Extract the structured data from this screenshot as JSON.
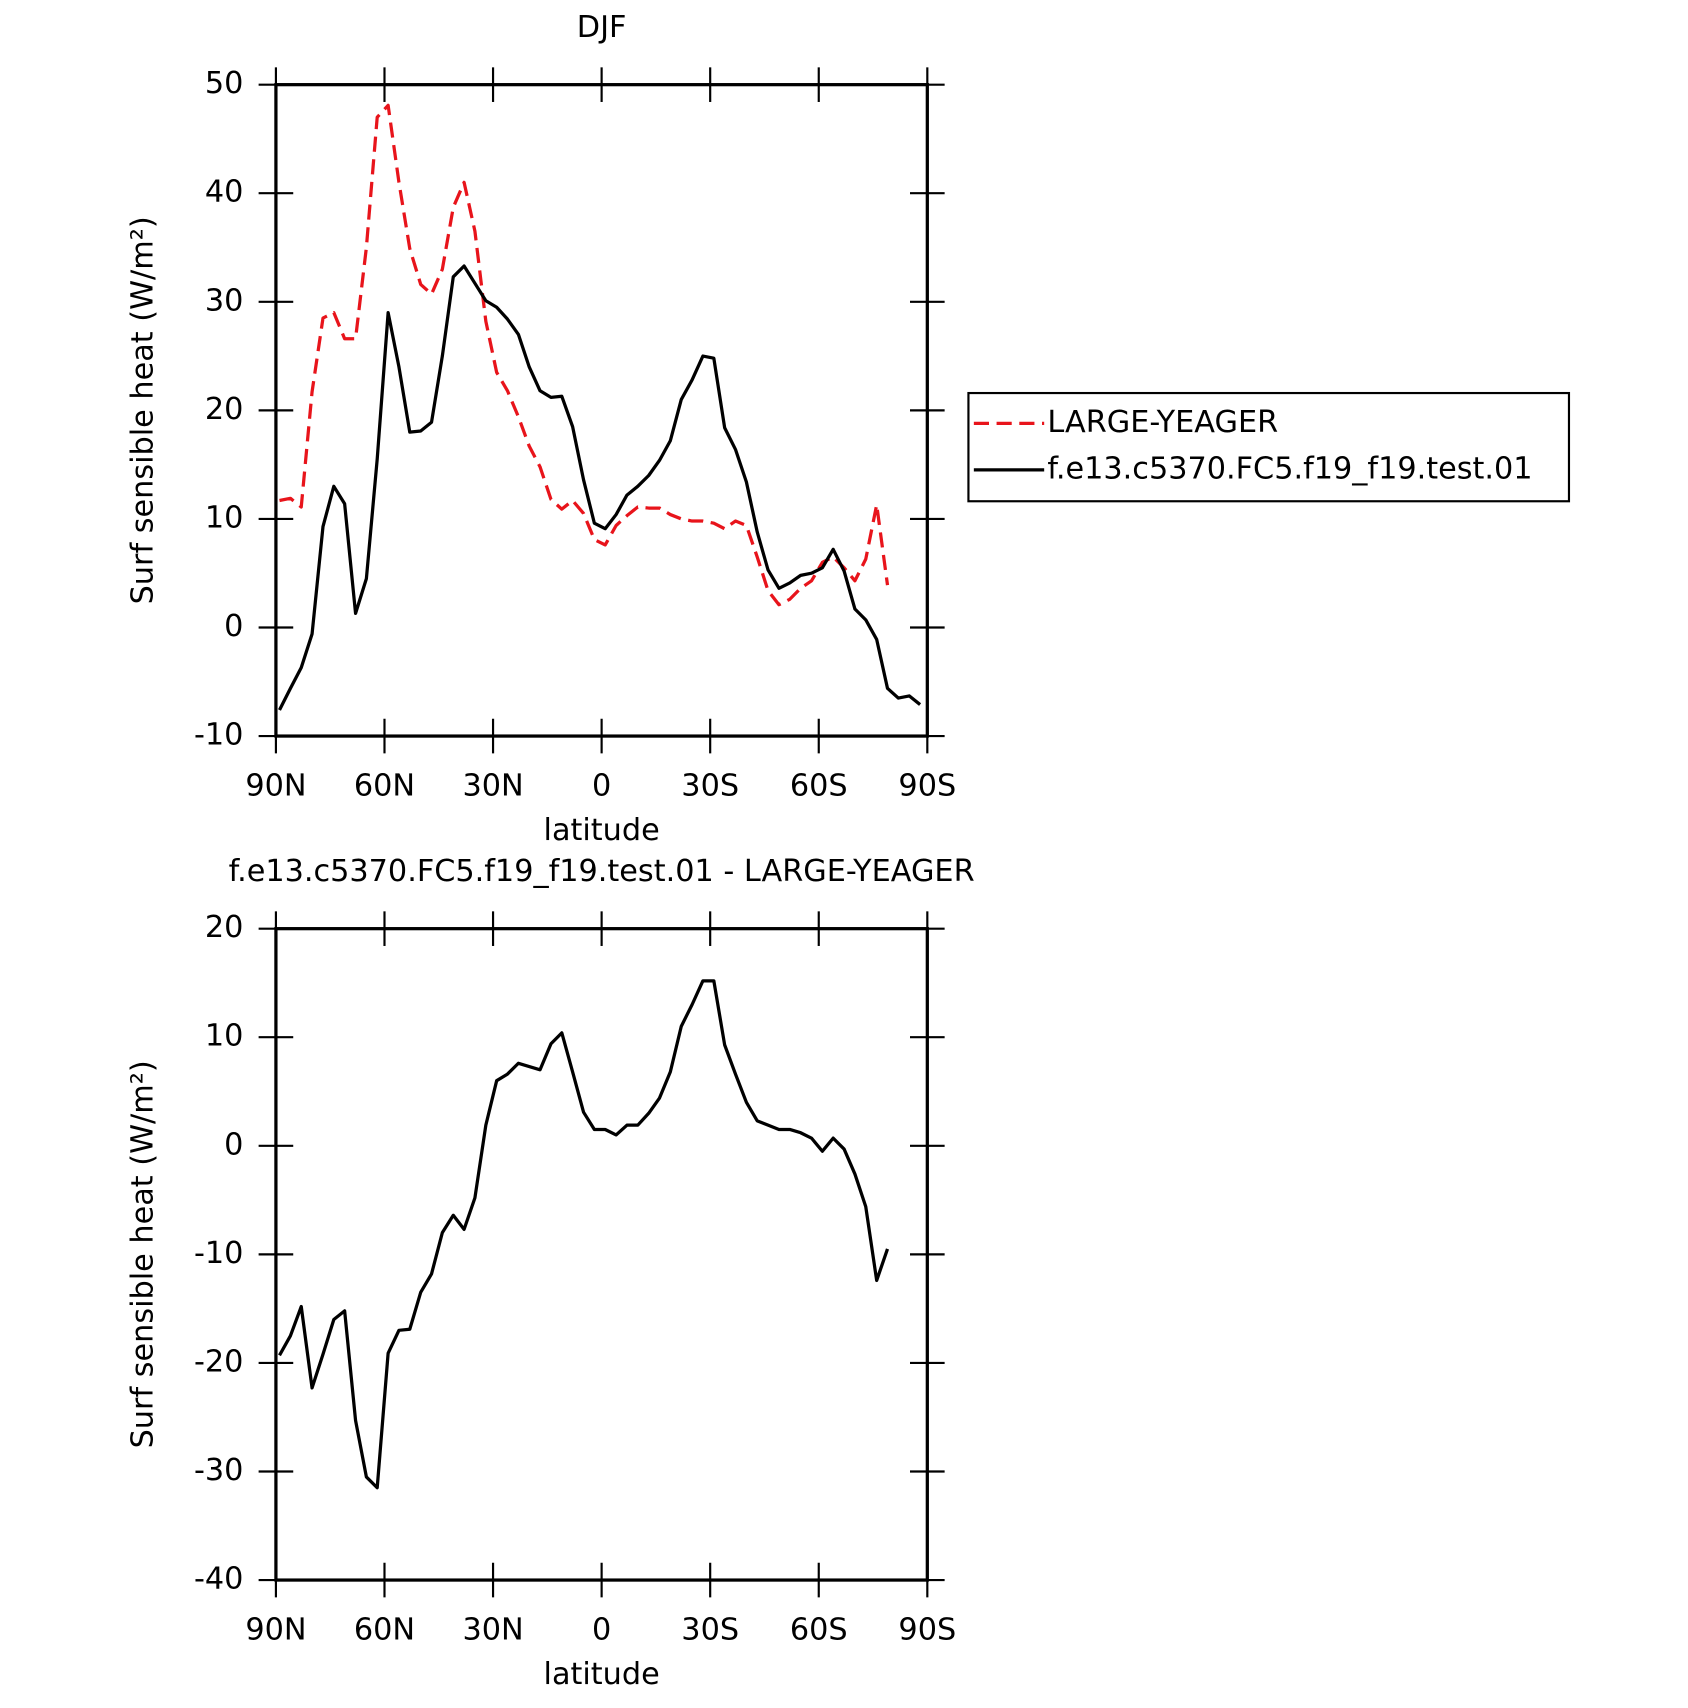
{
  "chart_data": [
    {
      "type": "line",
      "title": "DJF",
      "xlabel": "latitude",
      "ylabel": "Surf sensible heat (W/m²)",
      "x": [
        89,
        86,
        83,
        80,
        77,
        74,
        71,
        68,
        65,
        62,
        59,
        56,
        53,
        50,
        47,
        44,
        41,
        38,
        35,
        32,
        29,
        26,
        23,
        20,
        17,
        14,
        11,
        8,
        5,
        2,
        -1,
        -4,
        -7,
        -10,
        -13,
        -16,
        -19,
        -22,
        -25,
        -28,
        -31,
        -34,
        -37,
        -40,
        -43,
        -46,
        -49,
        -52,
        -55,
        -58,
        -61,
        -64,
        -67,
        -70,
        -73,
        -76,
        -79,
        -82,
        -85,
        -88
      ],
      "series": [
        {
          "name": "LARGE-YEAGER",
          "color": "#e8141b",
          "dash": true,
          "values": [
            11.7,
            11.9,
            11.1,
            21.7,
            28.5,
            29,
            26.6,
            26.6,
            35,
            47,
            48.1,
            41,
            34.9,
            31.6,
            30.7,
            33,
            38.7,
            41,
            36.5,
            28.2,
            23.5,
            21.8,
            19.4,
            16.7,
            14.8,
            11.8,
            10.9,
            11.7,
            10.5,
            8.1,
            7.6,
            9.4,
            10.3,
            11.1,
            11,
            11,
            10.4,
            10,
            9.8,
            9.8,
            9.6,
            9.1,
            9.8,
            9.4,
            6.5,
            3.4,
            2.1,
            2.6,
            3.6,
            4.3,
            6,
            6.5,
            5.5,
            4.3,
            6.3,
            11.3,
            3.9,
            null,
            null,
            null
          ]
        },
        {
          "name": "f.e13.c5370.FC5.f19_f19.test.01",
          "color": "#000000",
          "dash": false,
          "values": [
            -7.6,
            -5.6,
            -3.7,
            -0.6,
            9.3,
            13,
            11.4,
            1.3,
            4.5,
            15.5,
            29,
            24,
            18,
            18.1,
            18.9,
            25,
            32.3,
            33.3,
            31.7,
            30.1,
            29.5,
            28.4,
            27,
            24,
            21.8,
            21.2,
            21.3,
            18.5,
            13.6,
            9.6,
            9.1,
            10.4,
            12.2,
            13,
            14,
            15.4,
            17.2,
            21,
            22.8,
            25,
            24.8,
            18.4,
            16.4,
            13.4,
            8.8,
            5.3,
            3.6,
            4.1,
            4.8,
            5,
            5.5,
            7.2,
            5.2,
            1.7,
            0.7,
            -1.1,
            -5.6,
            -6.5,
            -6.3,
            -7.1
          ]
        }
      ],
      "xlim": [
        90,
        -90
      ],
      "xticks": [
        {
          "value": 90,
          "label": "90N"
        },
        {
          "value": 60,
          "label": "60N"
        },
        {
          "value": 30,
          "label": "30N"
        },
        0,
        {
          "value": -30,
          "label": "30S"
        },
        {
          "value": -60,
          "label": "60S"
        },
        {
          "value": -90,
          "label": "90S"
        }
      ],
      "ylim": [
        -10,
        50
      ],
      "yticks": [
        -10,
        0,
        10,
        20,
        30,
        40,
        50
      ],
      "legend": "right",
      "grid": false
    },
    {
      "type": "line",
      "title": "f.e13.c5370.FC5.f19_f19.test.01 - LARGE-YEAGER",
      "xlabel": "latitude",
      "ylabel": "Surf sensible heat (W/m²)",
      "x": [
        89,
        86,
        83,
        80,
        77,
        74,
        71,
        68,
        65,
        62,
        59,
        56,
        53,
        50,
        47,
        44,
        41,
        38,
        35,
        32,
        29,
        26,
        23,
        20,
        17,
        14,
        11,
        8,
        5,
        2,
        -1,
        -4,
        -7,
        -10,
        -13,
        -16,
        -19,
        -22,
        -25,
        -28,
        -31,
        -34,
        -37,
        -40,
        -43,
        -46,
        -49,
        -52,
        -55,
        -58,
        -61,
        -64,
        -67,
        -70,
        -73,
        -76,
        -79,
        -82,
        -85,
        -88
      ],
      "series": [
        {
          "color": "#000000",
          "dash": false,
          "values": [
            -19.3,
            -17.5,
            -14.8,
            -22.3,
            -19.2,
            -16,
            -15.2,
            -25.3,
            -30.5,
            -31.5,
            -19.1,
            -17,
            -16.9,
            -13.5,
            -11.8,
            -8,
            -6.4,
            -7.7,
            -4.8,
            1.9,
            6,
            6.6,
            7.6,
            7.3,
            7,
            9.4,
            10.4,
            6.8,
            3.1,
            1.5,
            1.5,
            1,
            1.9,
            1.9,
            3,
            4.4,
            6.8,
            11,
            13,
            15.2,
            15.2,
            9.3,
            6.6,
            4,
            2.3,
            1.9,
            1.5,
            1.5,
            1.2,
            0.7,
            -0.5,
            0.7,
            -0.3,
            -2.6,
            -5.6,
            -12.4,
            -9.5,
            null,
            null,
            null
          ]
        }
      ],
      "xlim": [
        90,
        -90
      ],
      "xticks": [
        {
          "value": 90,
          "label": "90N"
        },
        {
          "value": 60,
          "label": "60N"
        },
        {
          "value": 30,
          "label": "30N"
        },
        0,
        {
          "value": -30,
          "label": "30S"
        },
        {
          "value": -60,
          "label": "60S"
        },
        {
          "value": -90,
          "label": "90S"
        }
      ],
      "ylim": [
        -40,
        20
      ],
      "yticks": [
        -40,
        -30,
        -20,
        -10,
        0,
        10,
        20
      ],
      "grid": false
    }
  ]
}
